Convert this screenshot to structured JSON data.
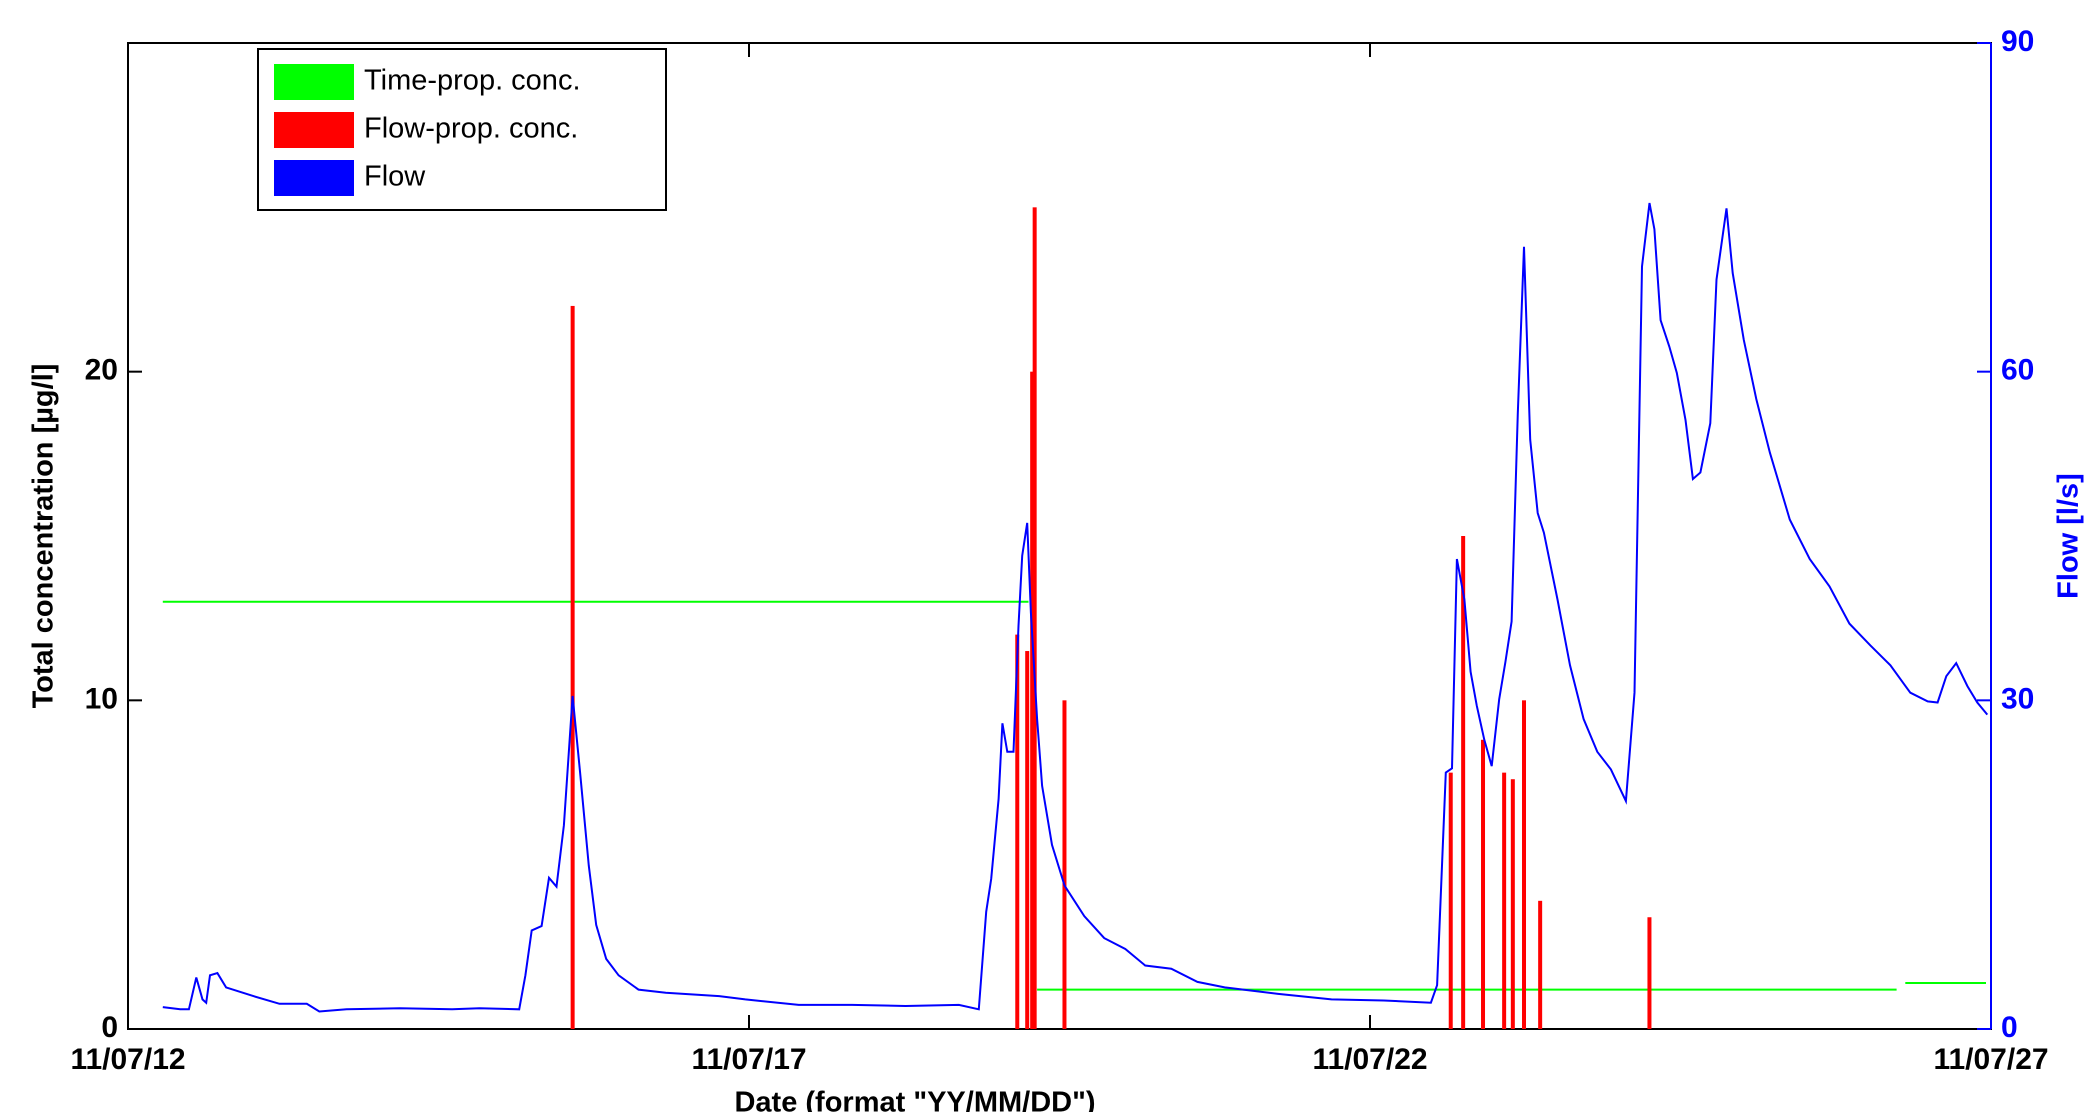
{
  "chart_data": {
    "type": "combo",
    "xlabel": "Date (format \"YY/MM/DD\")",
    "ylabel": "Total concentration [µg/l]",
    "y2label": "Flow [l/s]",
    "xlim": [
      12,
      27
    ],
    "xticks": [
      {
        "value": 12,
        "label": "11/07/12"
      },
      {
        "value": 17,
        "label": "11/07/17"
      },
      {
        "value": 22,
        "label": "11/07/22"
      },
      {
        "value": 27,
        "label": "11/07/27"
      }
    ],
    "ylim": [
      0,
      30
    ],
    "yticks": [
      0,
      10,
      20
    ],
    "y2lim": [
      0,
      90
    ],
    "y2ticks": [
      0,
      30,
      60,
      90
    ],
    "y2color": "#0000ff",
    "legend": "upper left",
    "series": [
      {
        "name": "Time-prop. conc.",
        "type": "line",
        "color": "#00ff00",
        "x": [
          12.28,
          19.25,
          19.28,
          19.32,
          26.24,
          26.27,
          26.31,
          26.96
        ],
        "values": [
          13,
          13,
          null,
          1.2,
          1.2,
          null,
          1.4,
          1.4
        ]
      },
      {
        "name": "Flow-prop. conc.",
        "type": "bar",
        "color": "#ff0000",
        "x": [
          15.58,
          19.16,
          19.24,
          19.28,
          19.3,
          19.54,
          22.65,
          22.75,
          22.91,
          23.08,
          23.15,
          23.24,
          23.37,
          24.25
        ],
        "values": [
          22,
          12,
          11.5,
          20,
          25,
          10,
          7.8,
          15,
          8.8,
          7.8,
          7.6,
          10,
          3.9,
          3.4
        ]
      },
      {
        "name": "Flow",
        "type": "line",
        "color": "#0000ff",
        "axis": "y2",
        "x": [
          12.28,
          12.42,
          12.49,
          12.55,
          12.6,
          12.63,
          12.66,
          12.72,
          12.79,
          13.01,
          13.22,
          13.44,
          13.54,
          13.76,
          14.19,
          14.61,
          14.83,
          15.15,
          15.2,
          15.25,
          15.33,
          15.39,
          15.45,
          15.51,
          15.58,
          15.64,
          15.71,
          15.77,
          15.85,
          15.95,
          16.11,
          16.33,
          16.76,
          16.97,
          17.4,
          17.83,
          18.26,
          18.69,
          18.85,
          18.91,
          18.95,
          19.01,
          19.04,
          19.08,
          19.13,
          19.17,
          19.2,
          19.24,
          19.27,
          19.32,
          19.36,
          19.44,
          19.54,
          19.7,
          19.86,
          20.03,
          20.19,
          20.4,
          20.61,
          20.83,
          21.26,
          21.69,
          22.11,
          22.49,
          22.54,
          22.61,
          22.66,
          22.7,
          22.76,
          22.81,
          22.86,
          22.92,
          22.98,
          23.04,
          23.09,
          23.14,
          23.19,
          23.24,
          23.29,
          23.35,
          23.4,
          23.51,
          23.61,
          23.72,
          23.83,
          23.94,
          24.06,
          24.13,
          24.19,
          24.25,
          24.29,
          24.34,
          24.41,
          24.47,
          24.54,
          24.6,
          24.66,
          24.74,
          24.79,
          24.87,
          24.92,
          25.01,
          25.11,
          25.22,
          25.38,
          25.54,
          25.7,
          25.86,
          26.03,
          26.19,
          26.35,
          26.49,
          26.57,
          26.64,
          26.72,
          26.81,
          26.89,
          26.97
        ],
        "values": [
          2,
          1.8,
          1.8,
          4.7,
          2.7,
          2.4,
          4.9,
          5.1,
          3.8,
          3,
          2.3,
          2.3,
          1.6,
          1.8,
          1.9,
          1.8,
          1.9,
          1.8,
          4.9,
          9,
          9.4,
          13.8,
          13,
          18.6,
          30.4,
          23.4,
          14.9,
          9.5,
          6.4,
          4.9,
          3.6,
          3.3,
          3,
          2.7,
          2.2,
          2.2,
          2.1,
          2.2,
          1.8,
          10.7,
          13.7,
          21,
          27.9,
          25.3,
          25.3,
          36.8,
          43.2,
          46.2,
          38,
          28.3,
          22.2,
          16.8,
          13.1,
          10.3,
          8.3,
          7.3,
          5.8,
          5.5,
          4.3,
          3.8,
          3.2,
          2.7,
          2.6,
          2.4,
          4,
          23.4,
          23.8,
          42.9,
          39.2,
          32.6,
          29.5,
          26.4,
          24,
          30.1,
          33.5,
          37.2,
          56.2,
          71.4,
          53.8,
          47.1,
          45.3,
          39.2,
          33.2,
          28.3,
          25.3,
          23.7,
          20.8,
          30.7,
          69.6,
          75.4,
          73,
          64.7,
          62.3,
          59.9,
          55.6,
          50.2,
          50.8,
          55.3,
          68.4,
          74.9,
          69,
          62.9,
          57.5,
          52.6,
          46.5,
          42.9,
          40.4,
          37,
          35,
          33.2,
          30.7,
          29.9,
          29.8,
          32.2,
          33.4,
          31.3,
          29.8,
          28.7
        ]
      }
    ]
  }
}
